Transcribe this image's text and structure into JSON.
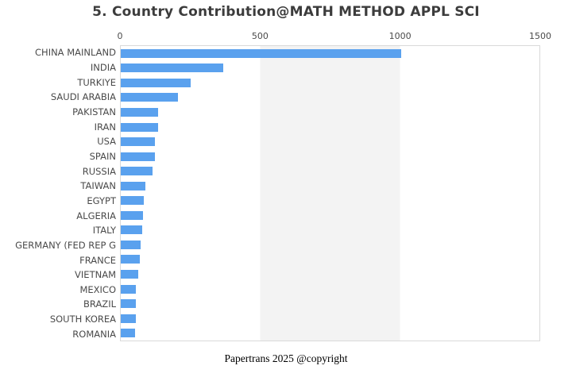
{
  "title": "5. Country Contribution@MATH METHOD APPL SCI",
  "footer": "Papertrans 2025 @copyright",
  "colors": {
    "bar": "#5aa1ee",
    "band": "#f3f3f3",
    "plot_border": "#d9d9d9",
    "text": "#4a4a4a",
    "title_text": "#3c3c3c"
  },
  "chart_data": {
    "type": "bar",
    "orientation": "horizontal",
    "title": "5. Country Contribution@MATH METHOD APPL SCI",
    "xlabel": "",
    "ylabel": "",
    "xlim": [
      0,
      1500
    ],
    "x_ticks": [
      0,
      500,
      1000,
      1500
    ],
    "axis_position": "top",
    "grid": "alternating-vertical-bands",
    "legend": "none",
    "categories": [
      "CHINA MAINLAND",
      "INDIA",
      "TURKIYE",
      "SAUDI ARABIA",
      "PAKISTAN",
      "IRAN",
      "USA",
      "SPAIN",
      "RUSSIA",
      "TAIWAN",
      "EGYPT",
      "ALGERIA",
      "ITALY",
      "GERMANY (FED REP G",
      "FRANCE",
      "VIETNAM",
      "MEXICO",
      "BRAZIL",
      "SOUTH KOREA",
      "ROMANIA"
    ],
    "values": [
      1005,
      368,
      251,
      206,
      135,
      133,
      122,
      121,
      114,
      88,
      82,
      79,
      78,
      70,
      67,
      62,
      54,
      53,
      53,
      50
    ]
  }
}
